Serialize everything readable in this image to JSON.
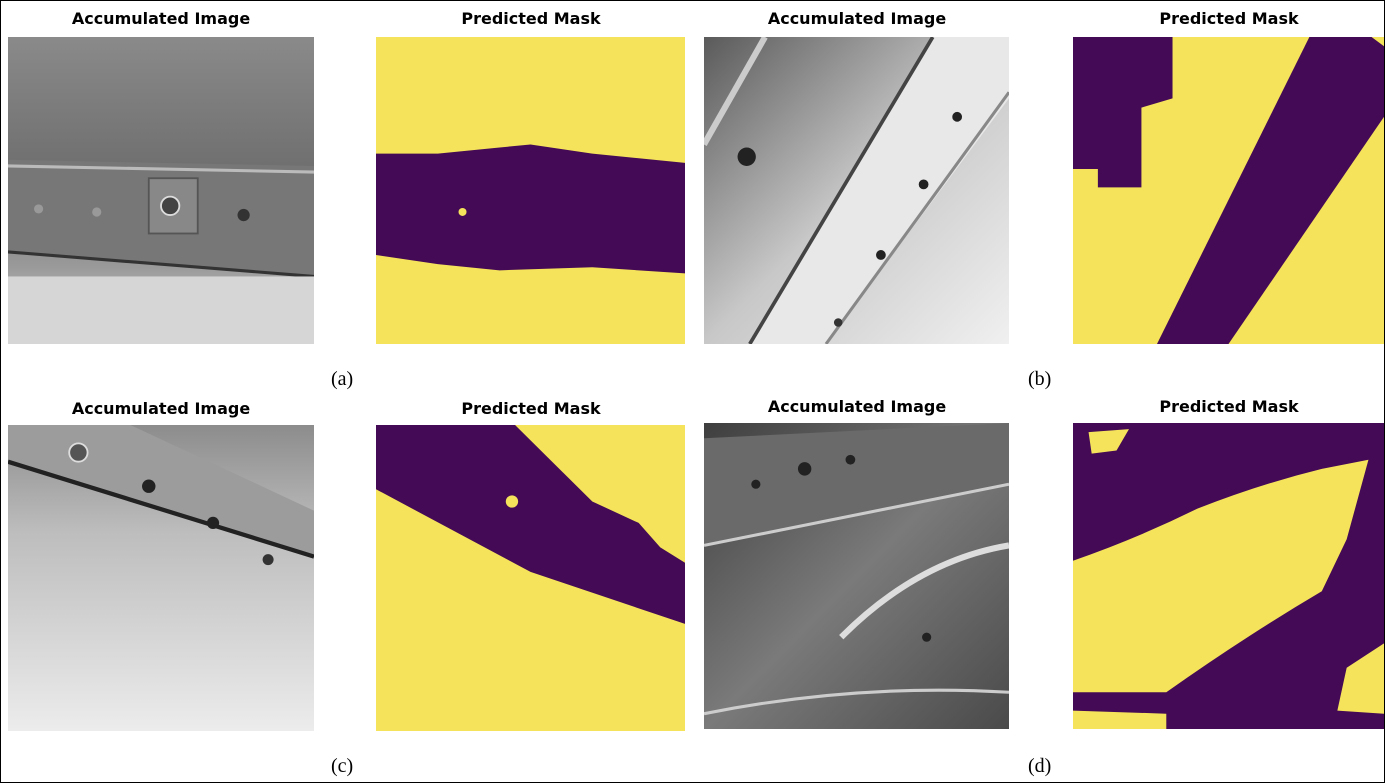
{
  "figures": [
    {
      "label": "(a)",
      "panels": [
        {
          "title": "Accumulated Image"
        },
        {
          "title": "Predicted Mask"
        }
      ]
    },
    {
      "label": "(b)",
      "panels": [
        {
          "title": "Accumulated Image"
        },
        {
          "title": "Predicted Mask"
        }
      ]
    },
    {
      "label": "(c)",
      "panels": [
        {
          "title": "Accumulated Image"
        },
        {
          "title": "Predicted Mask"
        }
      ]
    },
    {
      "label": "(d)",
      "panels": [
        {
          "title": "Accumulated Image"
        },
        {
          "title": "Predicted Mask"
        }
      ]
    }
  ]
}
